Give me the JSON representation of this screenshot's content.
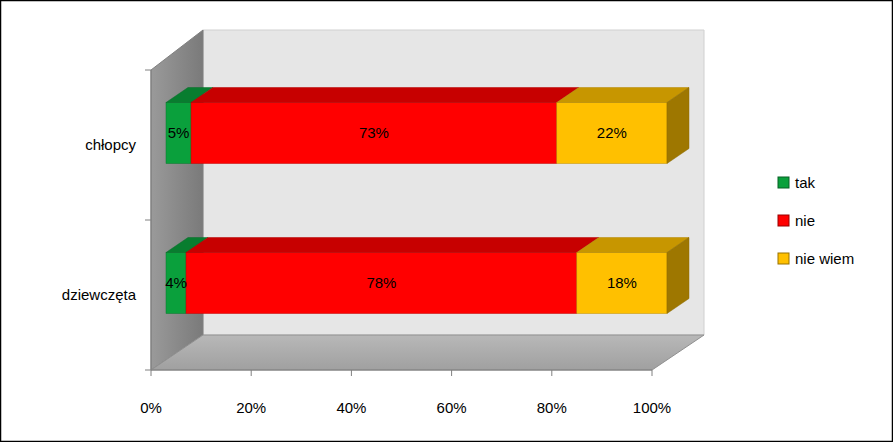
{
  "chart_data": {
    "type": "bar",
    "orientation": "horizontal",
    "stacked": true,
    "data_labels": true,
    "categories": [
      "chłopcy",
      "dziewczęta"
    ],
    "series": [
      {
        "name": "tak",
        "color": "#0aa03c",
        "values": [
          5,
          4
        ],
        "value_labels": [
          "5%",
          "4%"
        ]
      },
      {
        "name": "nie",
        "color": "#ff0000",
        "values": [
          73,
          78
        ],
        "value_labels": [
          "73%",
          "78%"
        ]
      },
      {
        "name": "nie wiem",
        "color": "#ffc000",
        "values": [
          22,
          18
        ],
        "value_labels": [
          "22%",
          "18%"
        ]
      }
    ],
    "xlim": [
      0,
      100
    ],
    "xticks": [
      {
        "value": 0,
        "label": "0%"
      },
      {
        "value": 20,
        "label": "20%"
      },
      {
        "value": 40,
        "label": "40%"
      },
      {
        "value": 60,
        "label": "60%"
      },
      {
        "value": 80,
        "label": "80%"
      },
      {
        "value": 100,
        "label": "100%"
      }
    ],
    "legend": "right",
    "grid": false
  }
}
